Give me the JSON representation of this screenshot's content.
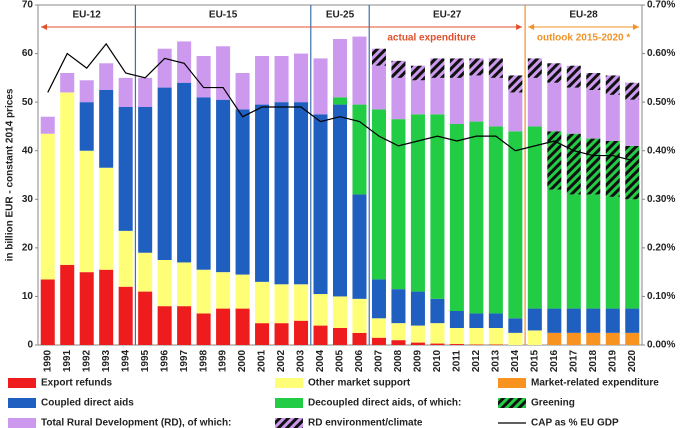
{
  "chart_data": {
    "type": "stacked-bar-line",
    "y_label": "in billion EUR - constant 2014 prices",
    "categories": [
      "1990",
      "1991",
      "1992",
      "1993",
      "1994",
      "1995",
      "1996",
      "1997",
      "1998",
      "1999",
      "2000",
      "2001",
      "2002",
      "2003",
      "2004",
      "2005",
      "2006",
      "2007",
      "2008",
      "2009",
      "2010",
      "2011",
      "2012",
      "2013",
      "2014",
      "2015",
      "2016",
      "2017",
      "2018",
      "2019",
      "2020"
    ],
    "ylim": [
      0,
      70
    ],
    "yticks": [
      0,
      10,
      20,
      30,
      40,
      50,
      60,
      70
    ],
    "y2lim": [
      0,
      0.7
    ],
    "y2ticks": [
      {
        "value": 0,
        "label": "0.00%"
      },
      {
        "value": 0.1,
        "label": "0.10%"
      },
      {
        "value": 0.2,
        "label": "0.20%"
      },
      {
        "value": 0.3,
        "label": "0.30%"
      },
      {
        "value": 0.4,
        "label": "0.40%"
      },
      {
        "value": 0.5,
        "label": "0.50%"
      },
      {
        "value": 0.6,
        "label": "0.60%"
      },
      {
        "value": 0.7,
        "label": "0.70%"
      }
    ],
    "grid": false,
    "periods": [
      {
        "name": "EU-12",
        "from": "1990",
        "to": "1994"
      },
      {
        "name": "EU-15",
        "from": "1995",
        "to": "2003"
      },
      {
        "name": "EU-25",
        "from": "2004",
        "to": "2006"
      },
      {
        "name": "EU-27",
        "from": "2007",
        "to": "2014"
      },
      {
        "name": "EU-28",
        "from": "2015",
        "to": "2020"
      }
    ],
    "phases": [
      {
        "name": "actual expenditure",
        "from": "1990",
        "to": "2014",
        "color": "#e0502a"
      },
      {
        "name": "outlook 2015-2020 *",
        "from": "2015",
        "to": "2020",
        "color": "#f0922a"
      }
    ],
    "series": [
      {
        "name": "Export refunds",
        "color": "#ee1c1c",
        "values": [
          13.5,
          16.5,
          15,
          15.5,
          12,
          11,
          8,
          8,
          6.5,
          7.5,
          7.5,
          4.5,
          4.5,
          5,
          4,
          3.5,
          2.5,
          1.5,
          1,
          0.5,
          0.3,
          0.2,
          0.1,
          0.1,
          0,
          0,
          0,
          0,
          0,
          0,
          0
        ]
      },
      {
        "name": "Other market support",
        "color": "#ffff77",
        "values": [
          30,
          35.5,
          25,
          21,
          11.5,
          8,
          9.5,
          9,
          9,
          7.5,
          7,
          8.5,
          8,
          7.5,
          6.5,
          6.5,
          7,
          4,
          3.5,
          3.5,
          4.2,
          3.3,
          3.4,
          3.4,
          2.5,
          3,
          0,
          0,
          0,
          0,
          0
        ]
      },
      {
        "name": "Market-related expenditure",
        "color": "#f7931e",
        "values": [
          0,
          0,
          0,
          0,
          0,
          0,
          0,
          0,
          0,
          0,
          0,
          0,
          0,
          0,
          0,
          0,
          0,
          0,
          0,
          0,
          0,
          0,
          0,
          0,
          0,
          0,
          2.5,
          2.5,
          2.5,
          2.5,
          2.5
        ]
      },
      {
        "name": "Coupled direct aids",
        "color": "#1f5fbf",
        "values": [
          0,
          0,
          10,
          16,
          25.5,
          30,
          35.5,
          37,
          35.5,
          35.5,
          34,
          36.5,
          37.5,
          37.5,
          37,
          39.5,
          21.5,
          8,
          7,
          7,
          5,
          3.5,
          3,
          3,
          3,
          4.5,
          5,
          5,
          5,
          5,
          5
        ]
      },
      {
        "name": "Decoupled direct aids, of which:",
        "color": "#22cc44",
        "values": [
          0,
          0,
          0,
          0,
          0,
          0,
          0,
          0,
          0,
          0,
          0,
          0,
          0,
          0,
          0,
          1.5,
          18.5,
          35,
          35,
          36.5,
          38,
          38.5,
          39.5,
          38.5,
          38.5,
          37.5,
          24.5,
          23.5,
          23.5,
          23,
          22.5
        ]
      },
      {
        "name": "Greening",
        "color": "#22cc44",
        "hatch": true,
        "values": [
          0,
          0,
          0,
          0,
          0,
          0,
          0,
          0,
          0,
          0,
          0,
          0,
          0,
          0,
          0,
          0,
          0,
          0,
          0,
          0,
          0,
          0,
          0,
          0,
          0,
          0,
          12,
          12.5,
          11.5,
          11.5,
          11
        ]
      },
      {
        "name": "Total Rural Development (RD), of which:",
        "color": "#cc99ee",
        "values": [
          3.5,
          4,
          4.5,
          5.5,
          6,
          6,
          8,
          8.5,
          8.5,
          11,
          7.5,
          10,
          9.5,
          10,
          11.5,
          12,
          14,
          9,
          8.5,
          7,
          7.5,
          9.5,
          9.5,
          10,
          8,
          10,
          10,
          9.5,
          10,
          9.5,
          9.5
        ]
      },
      {
        "name": "RD environment/climate",
        "color": "#cc99ee",
        "hatch": true,
        "values": [
          0,
          0,
          0,
          0,
          0,
          0,
          0,
          0,
          0,
          0,
          0,
          0,
          0,
          0,
          0,
          0,
          0,
          3.5,
          3.5,
          3,
          4,
          4,
          3.5,
          4,
          3.5,
          4,
          4,
          4.5,
          3.5,
          4,
          3.5
        ]
      },
      {
        "name": "CAP as % EU GDP",
        "color": "#000000",
        "axis": "y2",
        "values": [
          0.52,
          0.6,
          0.57,
          0.62,
          0.56,
          0.55,
          0.59,
          0.58,
          0.53,
          0.53,
          0.47,
          0.49,
          0.49,
          0.49,
          0.46,
          0.47,
          0.46,
          0.43,
          0.41,
          0.42,
          0.43,
          0.42,
          0.43,
          0.43,
          0.4,
          0.41,
          0.42,
          0.4,
          0.39,
          0.39,
          0.38
        ]
      }
    ]
  }
}
